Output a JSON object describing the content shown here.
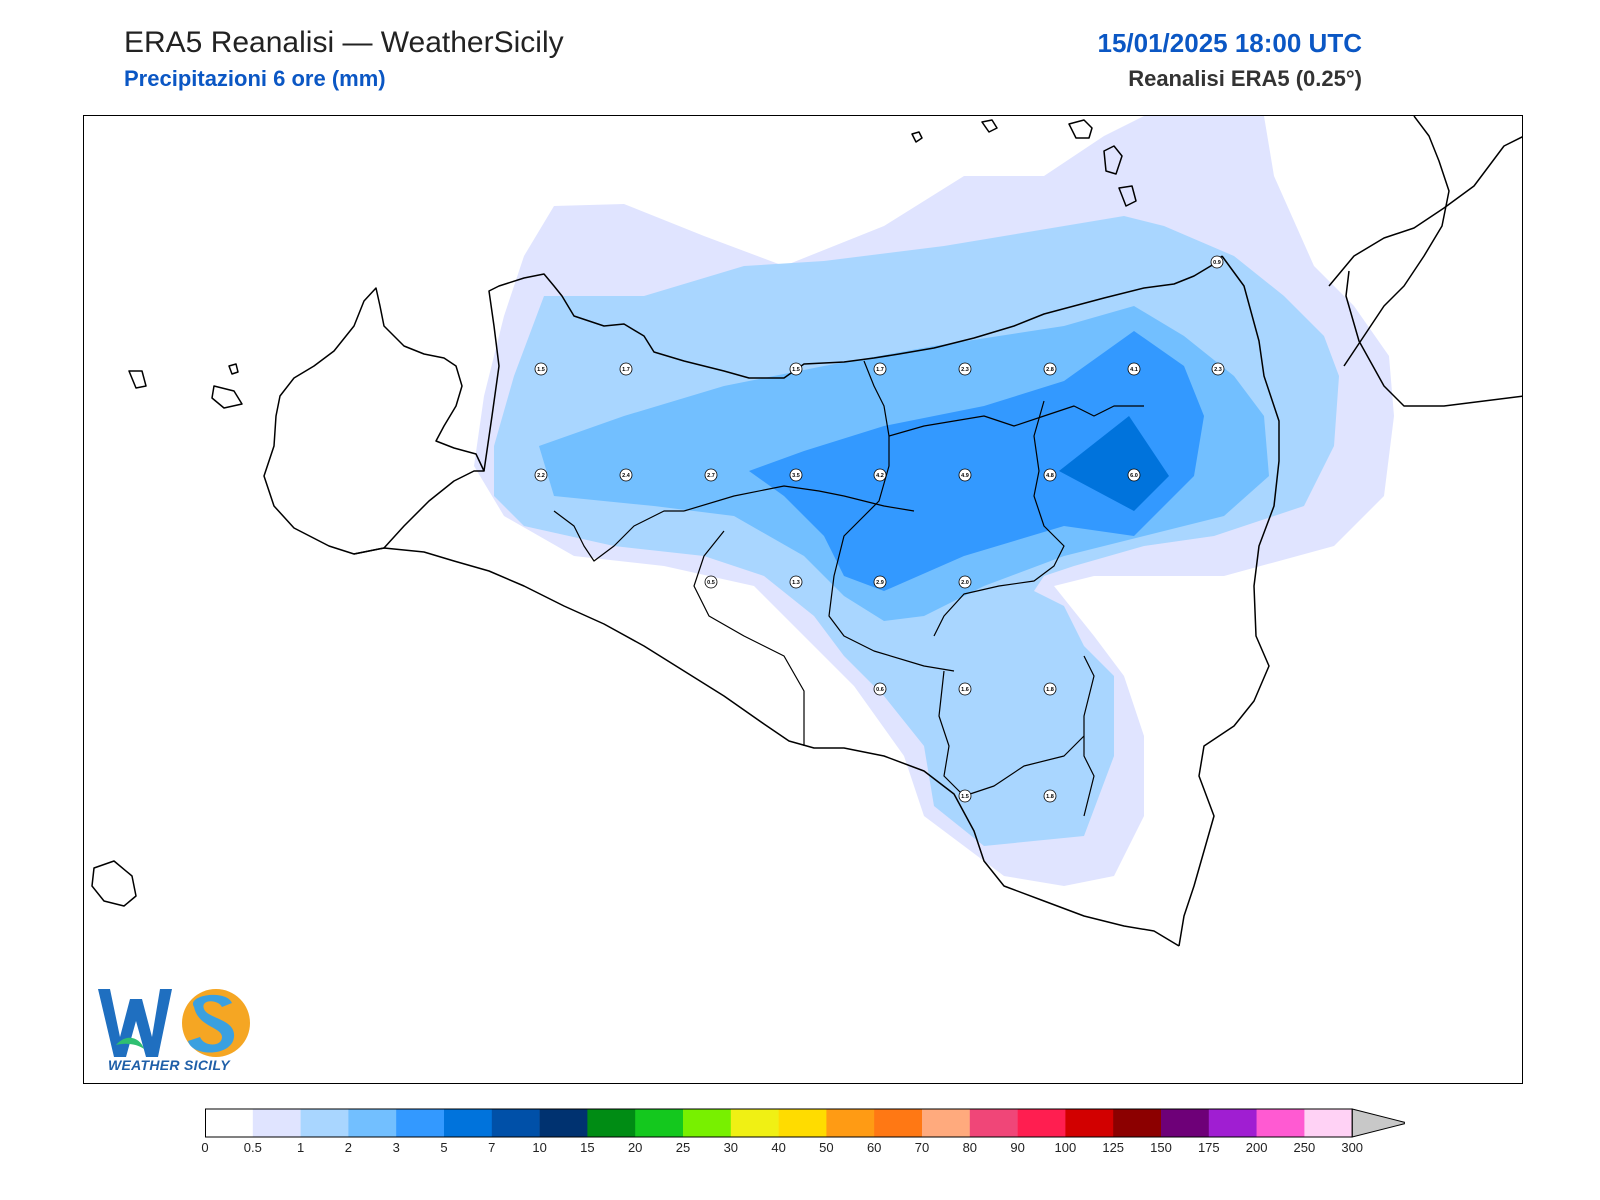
{
  "header": {
    "title": "ERA5 Reanalisi — WeatherSicily",
    "subtitle": "Precipitazioni 6 ore (mm)",
    "datetime": "15/01/2025 18:00 UTC",
    "source": "Reanalisi ERA5 (0.25°)"
  },
  "colors": {
    "accent_blue": "#0b57c4",
    "coast": "#000000",
    "shade_0_5": "#e0e4ff",
    "shade_1": "#a9d6ff",
    "shade_2": "#72bfff",
    "shade_3": "#3399ff",
    "shade_5": "#0073dc"
  },
  "grid_values": [
    "0.9",
    "1.5",
    "1.7",
    "1.5",
    "1.7",
    "2.3",
    "2.8",
    "4.1",
    "2.3",
    "2.2",
    "2.4",
    "2.7",
    "3.5",
    "4.2",
    "4.9",
    "4.8",
    "6.0",
    "0.5",
    "1.3",
    "2.9",
    "2.0",
    "0.6",
    "1.6",
    "1.8",
    "1.5",
    "1.8"
  ],
  "logo": {
    "icon": "weathersicily-logo-icon",
    "text": "WEATHER SICILY"
  },
  "colorbar": {
    "thresholds": [
      "0",
      "0.5",
      "1",
      "2",
      "3",
      "5",
      "7",
      "10",
      "15",
      "20",
      "25",
      "30",
      "40",
      "50",
      "60",
      "70",
      "80",
      "90",
      "100",
      "125",
      "150",
      "175",
      "200",
      "250",
      "300"
    ],
    "colors": [
      "#ffffff",
      "#e0e4ff",
      "#a9d6ff",
      "#72bfff",
      "#3399ff",
      "#0073dc",
      "#0050a8",
      "#003270",
      "#008c14",
      "#14c81e",
      "#78f000",
      "#f0f014",
      "#ffdc00",
      "#ff9b14",
      "#ff7814",
      "#ffaa7d",
      "#f04678",
      "#ff1e50",
      "#d20000",
      "#8c0000",
      "#6e0078",
      "#a01ed2",
      "#ff5ad2",
      "#ffd2f5"
    ],
    "extend_color": "#c8c8c8"
  }
}
